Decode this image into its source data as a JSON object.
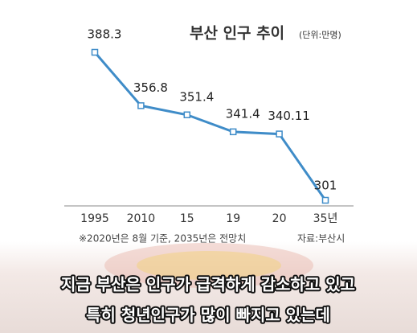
{
  "chart_data": {
    "type": "line",
    "title": "부산 인구 추이",
    "unit": "(단위:만명)",
    "categories": [
      "1995",
      "2010",
      "15",
      "19",
      "20",
      "35년"
    ],
    "values": [
      388.3,
      356.8,
      351.4,
      341.4,
      340.11,
      301
    ],
    "color": "#3f8cc8",
    "note": "※2020년은 8월 기준, 2035년은 전망치",
    "source": "자료:부산시"
  },
  "captions": [
    "지금 부산은 인구가 급격하게 감소하고 있고",
    "특히 청년인구가 많이 빠지고 있는데"
  ]
}
